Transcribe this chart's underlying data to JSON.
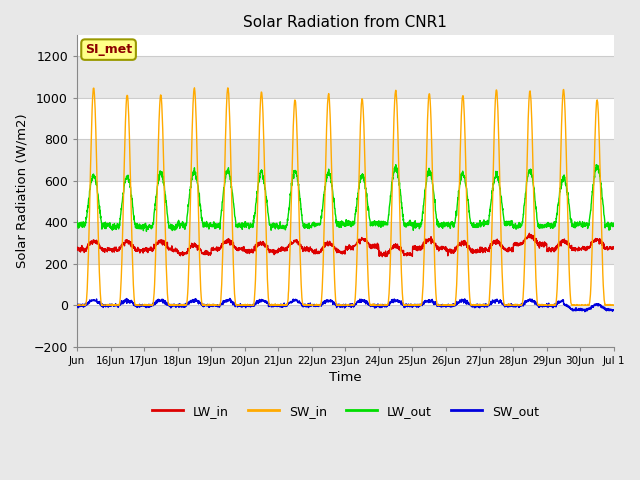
{
  "title": "Solar Radiation from CNR1",
  "xlabel": "Time",
  "ylabel": "Solar Radiation (W/m2)",
  "ylim": [
    -200,
    1300
  ],
  "yticks": [
    -200,
    0,
    200,
    400,
    600,
    800,
    1000,
    1200
  ],
  "plot_bg_color": "#ffffff",
  "fig_bg_color": "#e8e8e8",
  "grid_color": "#d0d0d0",
  "legend_label": "SI_met",
  "line_colors": {
    "LW_in": "#dd0000",
    "SW_in": "#ffaa00",
    "LW_out": "#00dd00",
    "SW_out": "#0000dd"
  },
  "n_days": 16,
  "start_day": 15,
  "points_per_day": 144
}
